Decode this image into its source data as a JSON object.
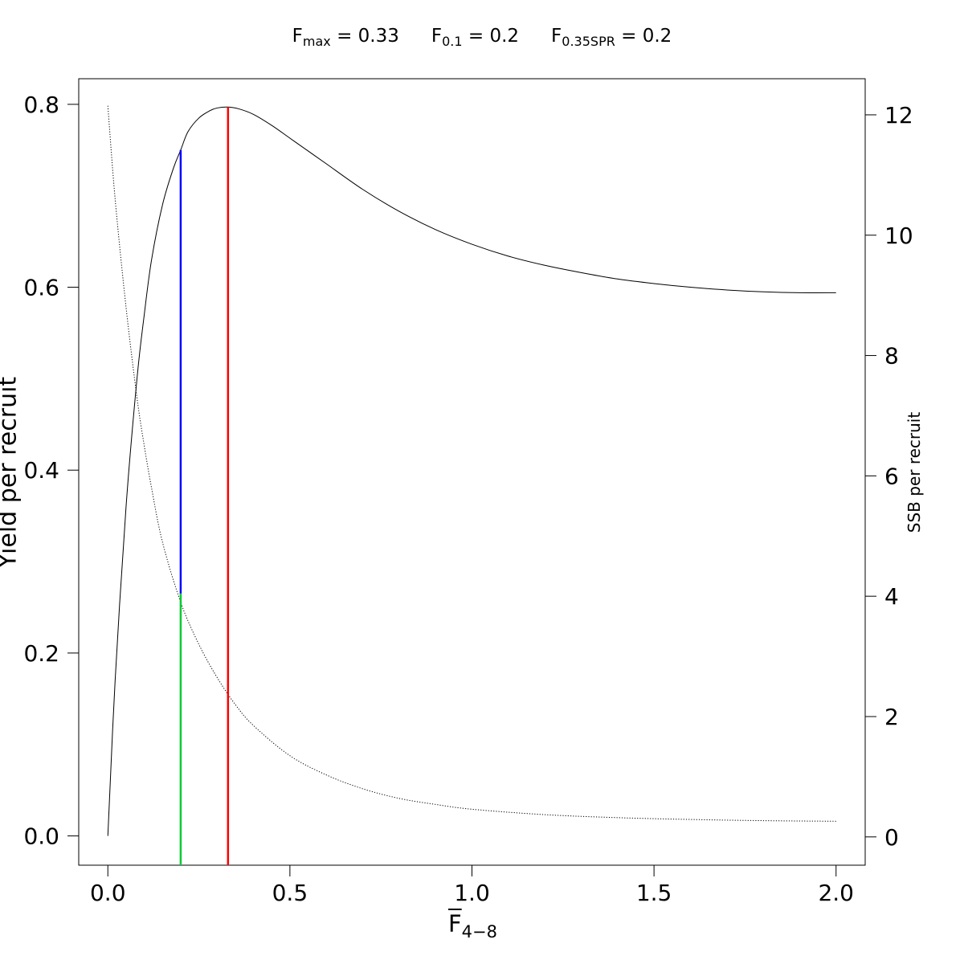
{
  "reference_points": [
    {
      "symbol": "F",
      "subscript": "max",
      "rest": " = 0.33"
    },
    {
      "symbol": "F",
      "subscript": "0.1",
      "rest": " = 0.2"
    },
    {
      "symbol": "F",
      "subscript": "0.35SPR",
      "rest": " = 0.2"
    }
  ],
  "chart_data": {
    "type": "line",
    "xlabel": {
      "main": "F",
      "subscript": "4−8"
    },
    "ylabel": "Yield per recruit",
    "y2label": "SSB per recruit",
    "xlim": [
      -0.08,
      2.08
    ],
    "ylim": [
      -0.032,
      0.828
    ],
    "y2lim": [
      -0.47,
      12.6
    ],
    "xticks": [
      0.0,
      0.5,
      1.0,
      1.5,
      2.0
    ],
    "xtick_labels": [
      "0.0",
      "0.5",
      "1.0",
      "1.5",
      "2.0"
    ],
    "yticks": [
      0.0,
      0.2,
      0.4,
      0.6,
      0.8
    ],
    "ytick_labels": [
      "0.0",
      "0.2",
      "0.4",
      "0.6",
      "0.8"
    ],
    "y2ticks": [
      0,
      2,
      4,
      6,
      8,
      10,
      12
    ],
    "y2tick_labels": [
      "0",
      "2",
      "4",
      "6",
      "8",
      "10",
      "12"
    ],
    "grid": false,
    "series": [
      {
        "axis": "left",
        "style": "solid",
        "color": "#000000",
        "x": [
          0.0,
          0.02,
          0.05,
          0.08,
          0.1,
          0.12,
          0.15,
          0.18,
          0.2,
          0.22,
          0.25,
          0.28,
          0.3,
          0.33,
          0.36,
          0.4,
          0.45,
          0.5,
          0.55,
          0.6,
          0.7,
          0.8,
          0.9,
          1.0,
          1.1,
          1.2,
          1.3,
          1.4,
          1.5,
          1.6,
          1.7,
          1.8,
          1.9,
          2.0
        ],
        "y": [
          0.0,
          0.17,
          0.36,
          0.5,
          0.57,
          0.63,
          0.69,
          0.73,
          0.75,
          0.77,
          0.785,
          0.793,
          0.796,
          0.797,
          0.795,
          0.789,
          0.777,
          0.763,
          0.749,
          0.735,
          0.707,
          0.683,
          0.663,
          0.647,
          0.634,
          0.624,
          0.616,
          0.609,
          0.604,
          0.6,
          0.597,
          0.595,
          0.594,
          0.594
        ]
      },
      {
        "axis": "right",
        "style": "dotted",
        "color": "#000000",
        "x": [
          0.0,
          0.02,
          0.05,
          0.08,
          0.1,
          0.12,
          0.15,
          0.2,
          0.25,
          0.3,
          0.35,
          0.4,
          0.5,
          0.6,
          0.7,
          0.8,
          0.9,
          1.0,
          1.2,
          1.4,
          1.6,
          1.8,
          2.0
        ],
        "y": [
          12.15,
          10.6,
          8.8,
          7.3,
          6.5,
          5.8,
          4.9,
          3.9,
          3.2,
          2.65,
          2.2,
          1.85,
          1.35,
          1.03,
          0.8,
          0.64,
          0.54,
          0.46,
          0.37,
          0.32,
          0.29,
          0.27,
          0.26
        ]
      }
    ],
    "reference_lines": [
      {
        "name": "F0.1",
        "color": "#0000ff",
        "x": 0.2,
        "y_from": 0.265,
        "y_to": 0.75
      },
      {
        "name": "F0.35SPR",
        "color": "#00cc33",
        "x": 0.2,
        "y_from": -0.032,
        "y_to": 0.265
      },
      {
        "name": "Fmax",
        "color": "#ff0000",
        "x": 0.33,
        "y_from": -0.032,
        "y_to": 0.797
      }
    ]
  }
}
